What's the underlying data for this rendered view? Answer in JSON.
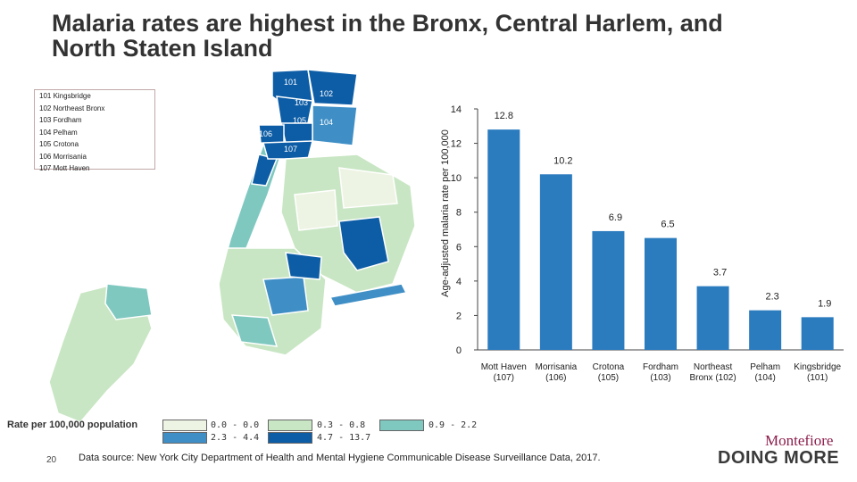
{
  "title": "Malaria rates are highest in the Bronx, Central Harlem, and North Staten Island",
  "map": {
    "region_labels": [
      "101",
      "102",
      "103",
      "104",
      "105",
      "106",
      "107"
    ],
    "legend_items": [
      "101 Kingsbridge",
      "102 Northeast Bronx",
      "103 Fordham",
      "104 Pelham",
      "105 Crotona",
      "106 Morrisania",
      "107 Mott Haven"
    ],
    "rate_title": "Rate per 100,000 population",
    "rate_legend": [
      {
        "label": "0.0 - 0.0",
        "color": "#eef4e4"
      },
      {
        "label": "0.3 - 0.8",
        "color": "#c8e6c3"
      },
      {
        "label": "0.9 - 2.2",
        "color": "#7fc8c0"
      },
      {
        "label": "2.3 - 4.4",
        "color": "#3f8fc6"
      },
      {
        "label": "4.7 - 13.7",
        "color": "#0d5da6"
      }
    ]
  },
  "chart_data": {
    "type": "bar",
    "categories": [
      "Mott Haven (107)",
      "Morrisania (106)",
      "Crotona (105)",
      "Fordham (103)",
      "Northeast Bronx (102)",
      "Pelham (104)",
      "Kingsbridge (101)"
    ],
    "category_lines": [
      [
        "Mott Haven",
        "(107)"
      ],
      [
        "Morrisania",
        "(106)"
      ],
      [
        "Crotona",
        "(105)"
      ],
      [
        "Fordham",
        "(103)"
      ],
      [
        "Northeast",
        "Bronx (102)"
      ],
      [
        "Pelham",
        "(104)"
      ],
      [
        "Kingsbridge",
        "(101)"
      ]
    ],
    "values": [
      12.8,
      10.2,
      6.9,
      6.5,
      3.7,
      2.3,
      1.9
    ],
    "value_labels": [
      "12.8",
      "10.2",
      "6.9",
      "6.5",
      "3.7",
      "2.3",
      "1.9"
    ],
    "ylabel": "Age-adjusted malaria rate per 100,000",
    "ylim": [
      0,
      14
    ],
    "yticks": [
      0,
      2,
      4,
      6,
      8,
      10,
      12,
      14
    ],
    "bar_color": "#2b7bbf",
    "grid": false
  },
  "footer": {
    "page_number": "20",
    "source": "Data source: New York City Department of Health and Mental Hygiene Communicable Disease Surveillance Data, 2017.",
    "logo_top": "Montefiore",
    "logo_bottom": "DOING MORE"
  }
}
